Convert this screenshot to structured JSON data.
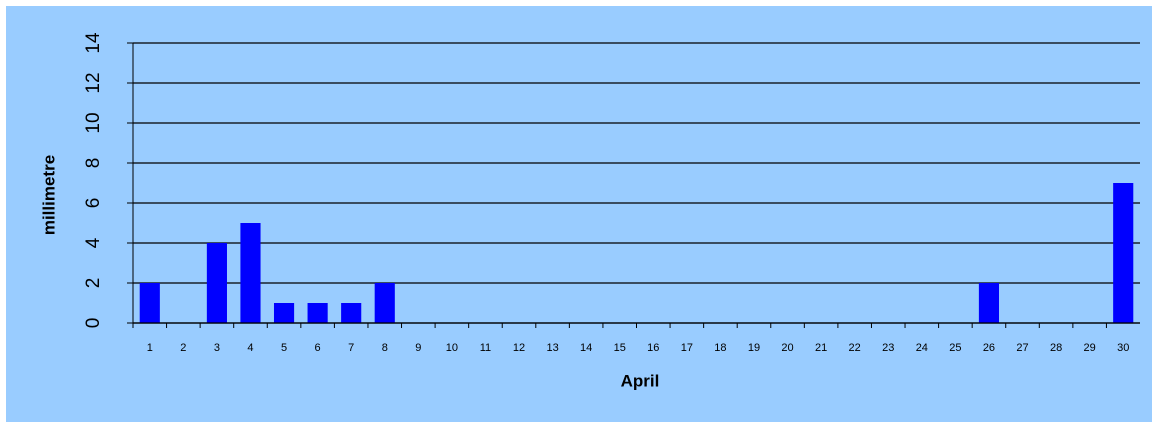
{
  "chart_data": {
    "type": "bar",
    "x_label": "April",
    "y_label": "millimetre",
    "categories": [
      "1",
      "2",
      "3",
      "4",
      "5",
      "6",
      "7",
      "8",
      "9",
      "10",
      "11",
      "12",
      "13",
      "14",
      "15",
      "16",
      "17",
      "18",
      "19",
      "20",
      "21",
      "22",
      "23",
      "24",
      "25",
      "26",
      "27",
      "28",
      "29",
      "30"
    ],
    "values": [
      2,
      0,
      4,
      5,
      1,
      1,
      1,
      2,
      0,
      0,
      0,
      0,
      0,
      0,
      0,
      0,
      0,
      0,
      0,
      0,
      0,
      0,
      0,
      0,
      0,
      2,
      0,
      0,
      0,
      7
    ],
    "color": "#0000ff",
    "ylim": [
      0,
      14
    ],
    "yticks": [
      0,
      2,
      4,
      6,
      8,
      10,
      12,
      14
    ],
    "grid": true
  }
}
